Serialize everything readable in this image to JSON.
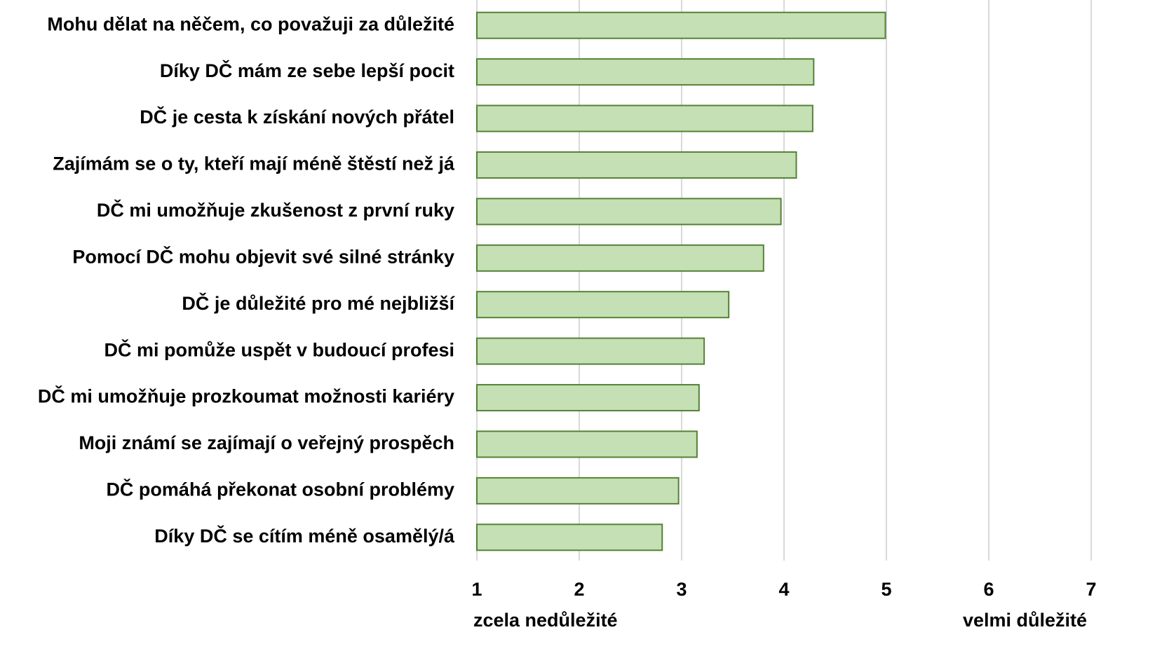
{
  "chart_data": {
    "type": "bar",
    "orientation": "horizontal",
    "categories": [
      "Mohu dělat na něčem, co považuji za důležité",
      "Díky DČ mám ze sebe lepší pocit",
      "DČ je cesta k získání nových přátel",
      "Zajímám se o ty, kteří mají méně štěstí než já",
      "DČ mi umožňuje zkušenost z první ruky",
      "Pomocí DČ mohu objevit své silné stránky",
      "DČ je důležité pro mé nejbližší",
      "DČ mi pomůže uspět v budoucí profesi",
      "DČ mi umožňuje prozkoumat možnosti kariéry",
      "Moji známí se zajímají o veřejný prospěch",
      "DČ pomáhá překonat osobní problémy",
      "Díky DČ se cítím méně osamělý/á"
    ],
    "values": [
      4.99,
      4.29,
      4.28,
      4.12,
      3.97,
      3.8,
      3.46,
      3.22,
      3.17,
      3.15,
      2.97,
      2.81
    ],
    "color": "#c5e0b4",
    "edge_color": "#548235",
    "xlim": [
      1,
      7
    ],
    "xticks": [
      1,
      2,
      3,
      4,
      5,
      6,
      7
    ],
    "grid": true,
    "x_min_label": "zcela nedůležité",
    "x_max_label": "velmi důležité"
  }
}
